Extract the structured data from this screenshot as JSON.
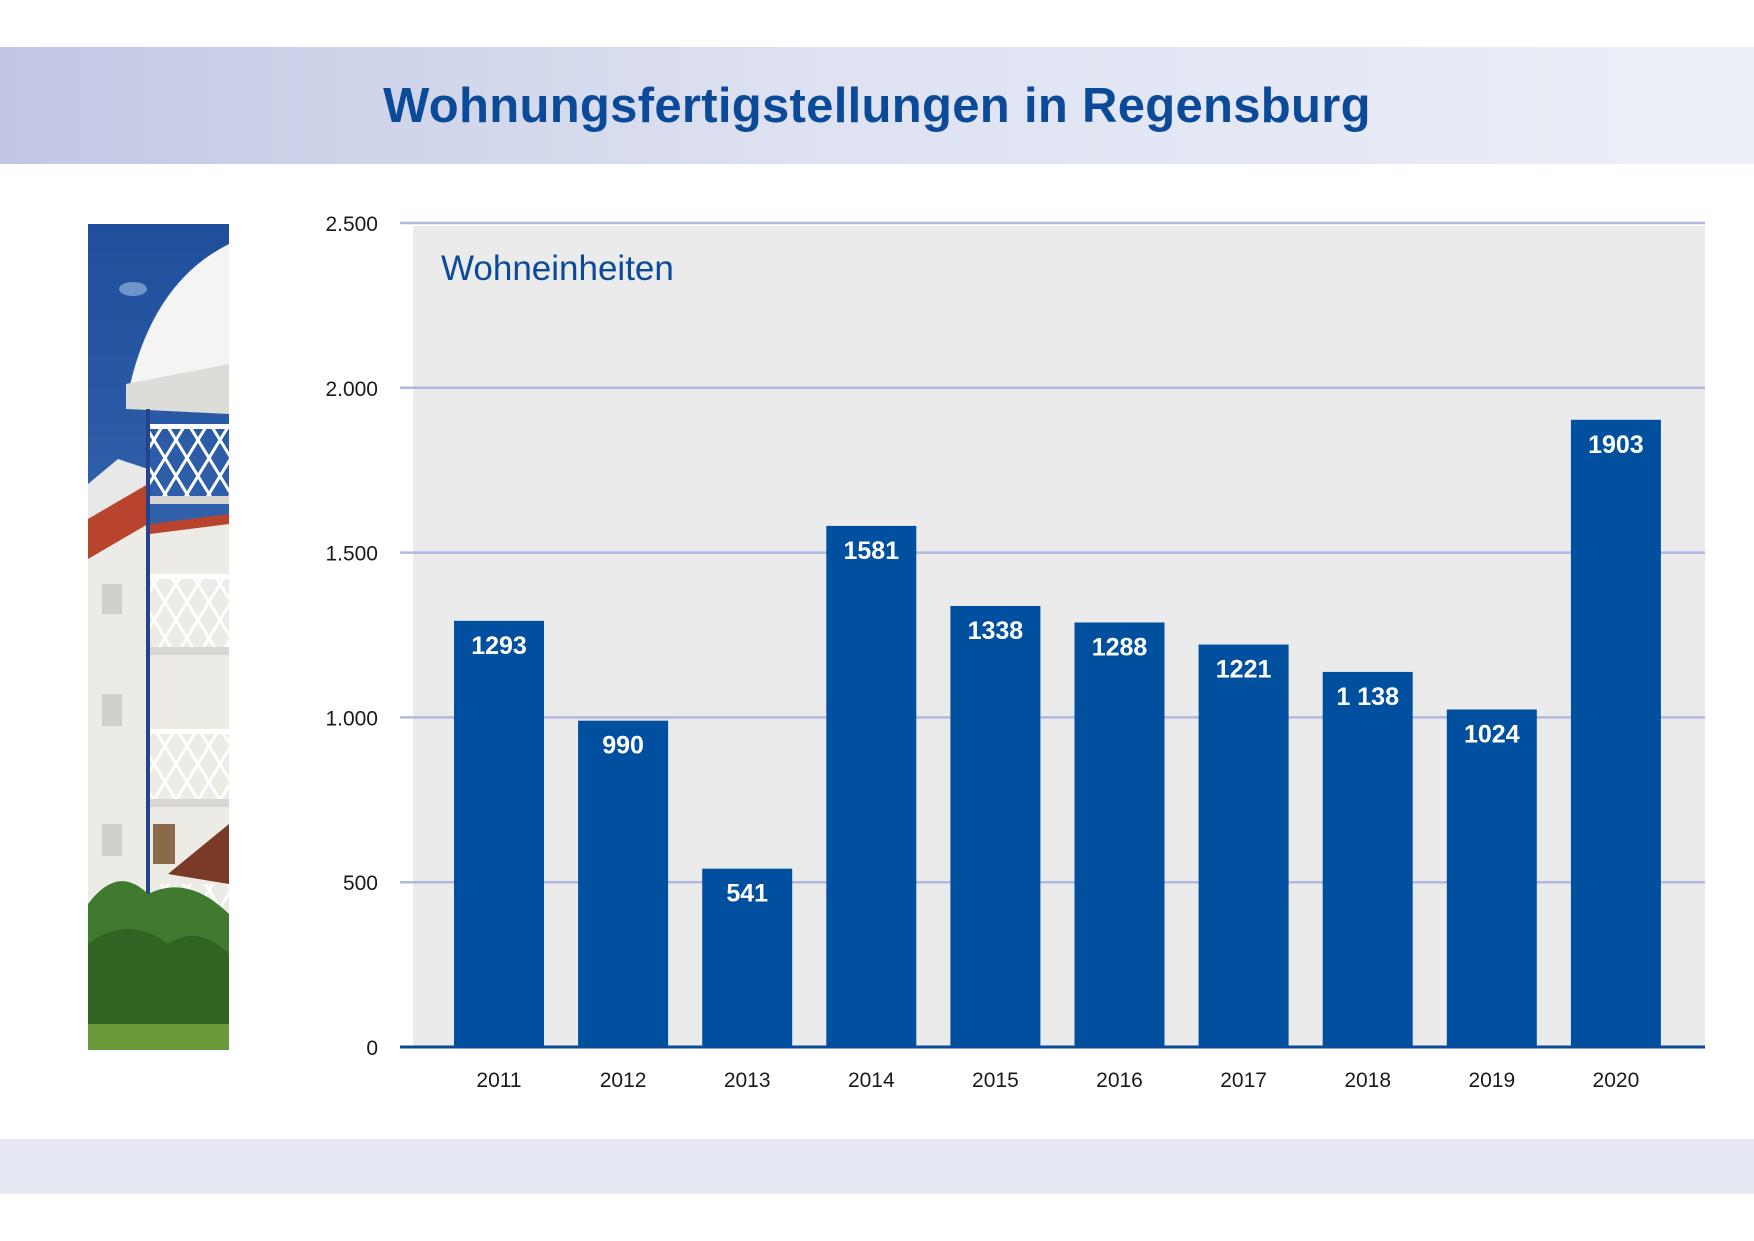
{
  "header": {
    "title": "Wohnungsfertigstellungen in Regensburg"
  },
  "colors": {
    "bar": "#00509f",
    "title": "#0b4a98",
    "plot_bg": "#ebebeb",
    "grid": "#b3b8e0",
    "axis": "#0b4a98"
  },
  "chart_data": {
    "type": "bar",
    "title": "Wohnungsfertigstellungen in Regensburg",
    "unit_label": "Wohneinheiten",
    "xlabel": "",
    "ylabel": "",
    "categories": [
      "2011",
      "2012",
      "2013",
      "2014",
      "2015",
      "2016",
      "2017",
      "2018",
      "2019",
      "2020"
    ],
    "values": [
      1293,
      990,
      541,
      1581,
      1338,
      1288,
      1221,
      1138,
      1024,
      1903
    ],
    "value_labels": [
      "1293",
      "990",
      "541",
      "1581",
      "1338",
      "1288",
      "1221",
      "1 138",
      "1024",
      "1903"
    ],
    "ylim": [
      0,
      2500
    ],
    "yticks": [
      0,
      500,
      1000,
      1500,
      2000,
      2500
    ],
    "ytick_labels": [
      "0",
      "500",
      "1.000",
      "1.500",
      "2.000",
      "2.500"
    ],
    "grid": true,
    "legend": "none"
  }
}
